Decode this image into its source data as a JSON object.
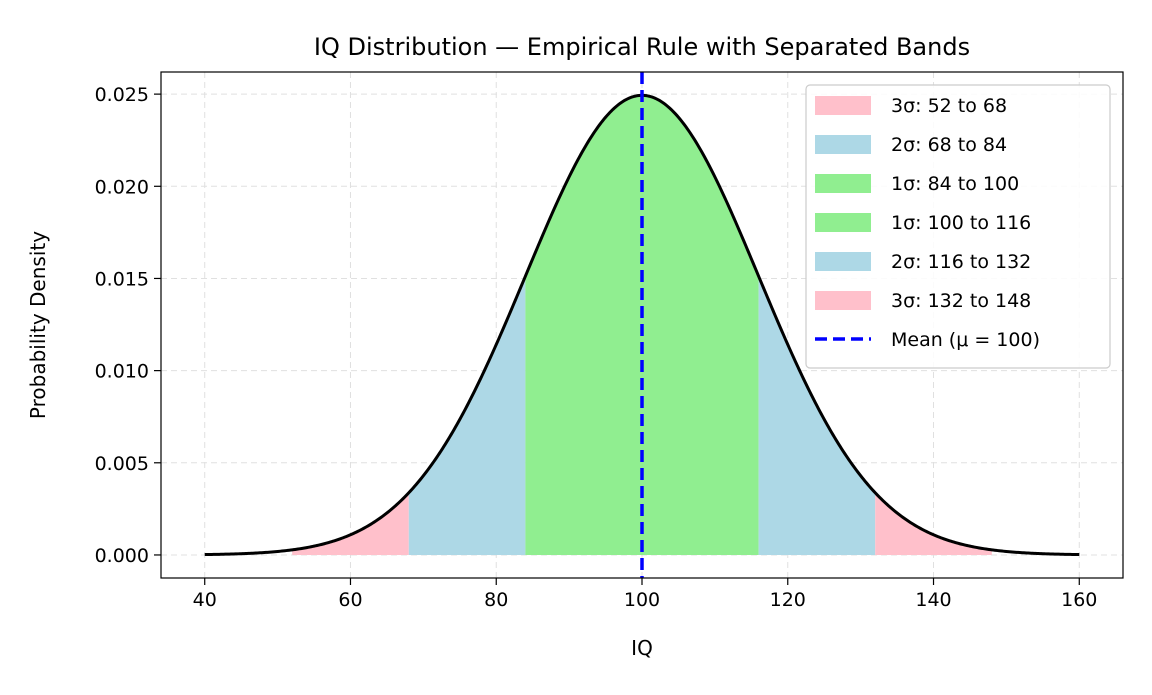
{
  "chart_data": {
    "type": "area",
    "title": "IQ Distribution — Empirical Rule with Separated Bands",
    "xlabel": "IQ",
    "ylabel": "Probability Density",
    "xlim": [
      34,
      166
    ],
    "ylim": [
      -0.00125,
      0.0262
    ],
    "x_range": [
      40,
      160
    ],
    "mu": 100,
    "sigma": 16,
    "grid": true,
    "legend_position": "top-right",
    "xticks": [
      40,
      60,
      80,
      100,
      120,
      140,
      160
    ],
    "xtick_labels": [
      "40",
      "60",
      "80",
      "100",
      "120",
      "140",
      "160"
    ],
    "yticks": [
      0,
      0.005,
      0.01,
      0.015,
      0.02,
      0.025
    ],
    "ytick_labels": [
      "0.000",
      "0.005",
      "0.010",
      "0.015",
      "0.020",
      "0.025"
    ],
    "bands": [
      {
        "label": "3σ: 52 to 68",
        "from": 52,
        "to": 68,
        "color": "#ffc0cb"
      },
      {
        "label": "2σ: 68 to 84",
        "from": 68,
        "to": 84,
        "color": "#add8e6"
      },
      {
        "label": "1σ: 84 to 100",
        "from": 84,
        "to": 100,
        "color": "#90ee90"
      },
      {
        "label": "1σ: 100 to 116",
        "from": 100,
        "to": 116,
        "color": "#90ee90"
      },
      {
        "label": "2σ: 116 to 132",
        "from": 116,
        "to": 132,
        "color": "#add8e6"
      },
      {
        "label": "3σ: 132 to 148",
        "from": 132,
        "to": 148,
        "color": "#ffc0cb"
      }
    ],
    "mean_line": {
      "label": "Mean (μ = 100)",
      "x": 100,
      "color": "#0000ff"
    },
    "curve_color": "#000000"
  }
}
